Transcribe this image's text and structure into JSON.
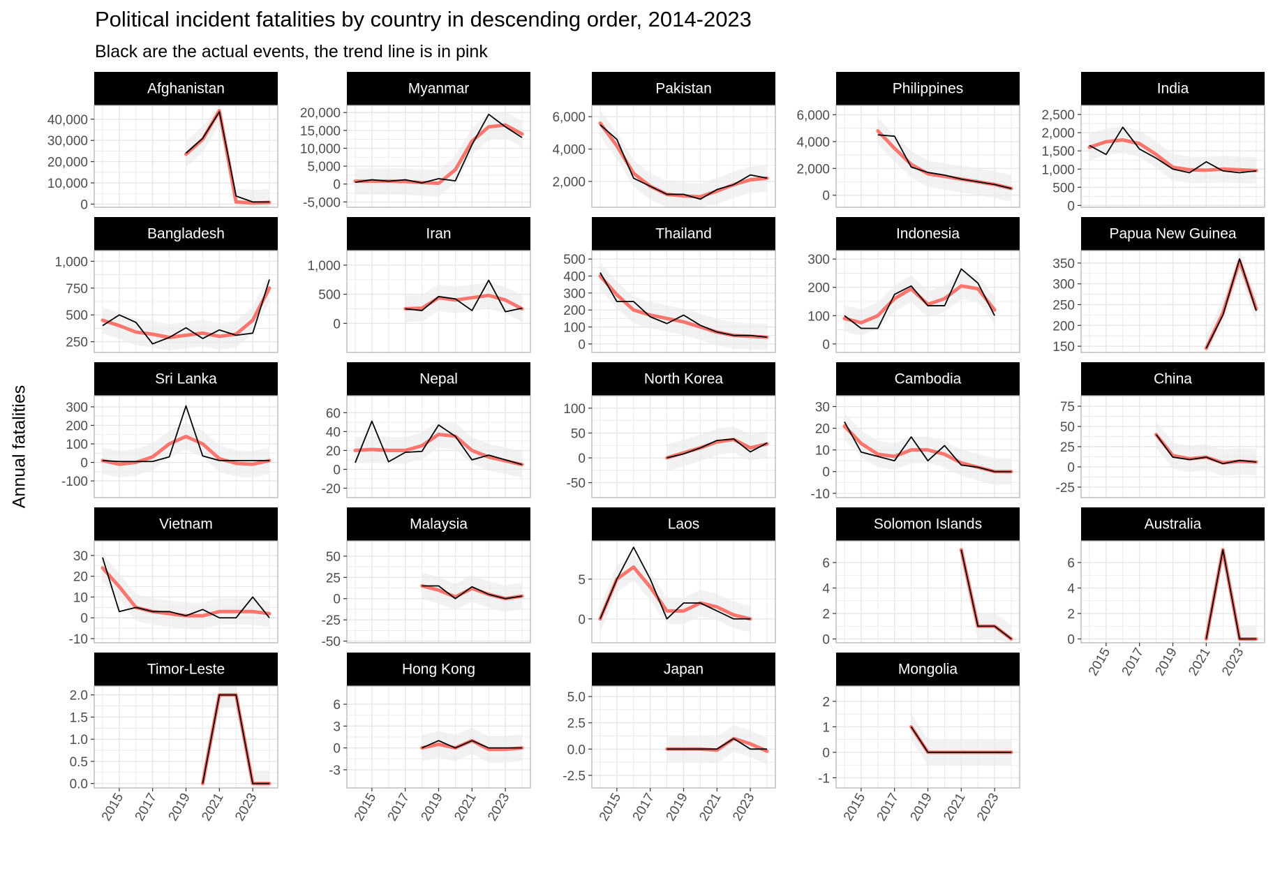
{
  "chart_data": {
    "type": "line",
    "title": "Political incident fatalities by country in descending order, 2014-2023",
    "subtitle": "Black are the actual events, the trend line is in pink",
    "ylabel": "Annual fatalities",
    "xlabel": "",
    "x_tick_labels": [
      "2015",
      "2017",
      "2019",
      "2021",
      "2023"
    ],
    "colors": {
      "actual": "#000000",
      "trend": "#f8766d",
      "band": "#ebebeb",
      "grid": "#e6e6e6",
      "strip": "#000000"
    },
    "panels": [
      {
        "name": "Afghanistan",
        "yticks": [
          "0",
          "10,000",
          "20,000",
          "30,000",
          "40,000"
        ],
        "ylim": [
          -1500,
          46500
        ],
        "x": [
          2019,
          2020,
          2021,
          2022,
          2023,
          2024
        ],
        "actual": [
          24000,
          31000,
          43500,
          3800,
          1000,
          1000
        ],
        "trend": [
          23500,
          30500,
          44000,
          1000,
          500,
          800
        ]
      },
      {
        "name": "Myanmar",
        "yticks": [
          "-5,000",
          "0",
          "5,000",
          "10,000",
          "15,000",
          "20,000"
        ],
        "ylim": [
          -6500,
          22000
        ],
        "x": [
          2014,
          2015,
          2016,
          2017,
          2018,
          2019,
          2020,
          2021,
          2022,
          2023,
          2024
        ],
        "actual": [
          500,
          1200,
          800,
          1200,
          300,
          1500,
          900,
          11000,
          19500,
          16000,
          13000
        ],
        "trend": [
          800,
          800,
          800,
          700,
          400,
          200,
          4000,
          12000,
          16000,
          16500,
          14000
        ]
      },
      {
        "name": "Pakistan",
        "yticks": [
          "2,000",
          "4,000",
          "6,000"
        ],
        "ylim": [
          400,
          6700
        ],
        "x": [
          2014,
          2015,
          2016,
          2017,
          2018,
          2019,
          2020,
          2021,
          2022,
          2023,
          2024
        ],
        "actual": [
          5500,
          4600,
          2200,
          1700,
          1200,
          1200,
          900,
          1500,
          1800,
          2400,
          2200
        ],
        "trend": [
          5600,
          4200,
          2500,
          1700,
          1200,
          1100,
          1050,
          1400,
          1800,
          2100,
          2200
        ]
      },
      {
        "name": "Philippines",
        "yticks": [
          "0",
          "2,000",
          "4,000",
          "6,000"
        ],
        "ylim": [
          -900,
          6700
        ],
        "x": [
          2016,
          2017,
          2018,
          2019,
          2020,
          2021,
          2022,
          2023,
          2024
        ],
        "actual": [
          4500,
          4400,
          2100,
          1700,
          1500,
          1200,
          1000,
          800,
          500
        ],
        "trend": [
          4800,
          3500,
          2300,
          1600,
          1400,
          1200,
          1000,
          800,
          500
        ]
      },
      {
        "name": "India",
        "yticks": [
          "0",
          "500",
          "1,000",
          "1,500",
          "2,000",
          "2,500"
        ],
        "ylim": [
          -50,
          2750
        ],
        "x": [
          2014,
          2015,
          2016,
          2017,
          2018,
          2019,
          2020,
          2021,
          2022,
          2023,
          2024
        ],
        "actual": [
          1650,
          1400,
          2150,
          1550,
          1300,
          1000,
          900,
          1200,
          950,
          900,
          950
        ],
        "trend": [
          1600,
          1750,
          1800,
          1700,
          1400,
          1050,
          980,
          970,
          1000,
          980,
          960
        ]
      },
      {
        "name": "Bangladesh",
        "yticks": [
          "250",
          "500",
          "750",
          "1,000"
        ],
        "ylim": [
          150,
          1100
        ],
        "x": [
          2014,
          2015,
          2016,
          2017,
          2018,
          2019,
          2020,
          2021,
          2022,
          2023,
          2024
        ],
        "actual": [
          400,
          500,
          430,
          230,
          290,
          380,
          280,
          360,
          310,
          330,
          830
        ],
        "trend": [
          450,
          400,
          340,
          320,
          290,
          310,
          330,
          300,
          320,
          450,
          750
        ]
      },
      {
        "name": "Iran",
        "yticks": [
          "0",
          "500",
          "1,000"
        ],
        "ylim": [
          -500,
          1250
        ],
        "x": [
          2017,
          2018,
          2019,
          2020,
          2021,
          2022,
          2023,
          2024
        ],
        "actual": [
          250,
          220,
          460,
          420,
          220,
          740,
          200,
          260
        ],
        "trend": [
          250,
          260,
          440,
          400,
          440,
          480,
          400,
          250
        ]
      },
      {
        "name": "Thailand",
        "yticks": [
          "0",
          "100",
          "200",
          "300",
          "400",
          "500"
        ],
        "ylim": [
          -50,
          550
        ],
        "x": [
          2014,
          2015,
          2016,
          2017,
          2018,
          2019,
          2020,
          2021,
          2022,
          2023,
          2024
        ],
        "actual": [
          420,
          250,
          250,
          160,
          120,
          170,
          110,
          70,
          50,
          50,
          40
        ],
        "trend": [
          400,
          290,
          200,
          170,
          150,
          130,
          100,
          70,
          50,
          45,
          40
        ]
      },
      {
        "name": "Indonesia",
        "yticks": [
          "0",
          "100",
          "200",
          "300"
        ],
        "ylim": [
          -30,
          330
        ],
        "x": [
          2014,
          2015,
          2016,
          2017,
          2018,
          2019,
          2020,
          2021,
          2022,
          2023,
          2024
        ],
        "actual": [
          100,
          55,
          55,
          175,
          205,
          135,
          135,
          265,
          215,
          100
        ],
        "x_override": [
          2014,
          2015,
          2016,
          2017,
          2018,
          2019,
          2020,
          2021,
          2022,
          2023
        ],
        "trend": [
          90,
          75,
          100,
          160,
          195,
          140,
          160,
          205,
          195,
          120
        ],
        "trend_x": [
          2014,
          2015,
          2016,
          2017,
          2018,
          2019,
          2020,
          2021,
          2022,
          2023
        ]
      },
      {
        "name": "Papua New Guinea",
        "yticks": [
          "150",
          "200",
          "250",
          "300",
          "350"
        ],
        "ylim": [
          135,
          380
        ],
        "x": [
          2021,
          2022,
          2023,
          2024
        ],
        "actual": [
          145,
          225,
          360,
          235
        ],
        "trend": [
          145,
          230,
          355,
          240
        ]
      },
      {
        "name": "Sri Lanka",
        "yticks": [
          "-100",
          "0",
          "100",
          "200",
          "300"
        ],
        "ylim": [
          -190,
          360
        ],
        "x": [
          2014,
          2015,
          2016,
          2017,
          2018,
          2019,
          2020,
          2021,
          2022,
          2023,
          2024
        ],
        "actual": [
          10,
          5,
          5,
          5,
          30,
          305,
          35,
          10,
          10,
          10,
          10
        ],
        "trend": [
          10,
          -10,
          0,
          30,
          100,
          140,
          100,
          20,
          -5,
          -10,
          10
        ]
      },
      {
        "name": "Nepal",
        "yticks": [
          "-20",
          "0",
          "20",
          "40",
          "60"
        ],
        "ylim": [
          -30,
          78
        ],
        "x": [
          2014,
          2015,
          2016,
          2017,
          2018,
          2019,
          2020,
          2021,
          2022,
          2023,
          2024
        ],
        "actual": [
          7,
          51,
          8,
          18,
          19,
          47,
          35,
          10,
          15,
          10,
          5
        ],
        "trend": [
          20,
          21,
          20,
          20,
          25,
          37,
          35,
          20,
          13,
          9,
          5
        ]
      },
      {
        "name": "North Korea",
        "yticks": [
          "-50",
          "0",
          "50",
          "100"
        ],
        "ylim": [
          -80,
          125
        ],
        "x": [
          2018,
          2019,
          2020,
          2021,
          2022,
          2023,
          2024
        ],
        "actual": [
          0,
          8,
          20,
          35,
          38,
          12,
          30
        ],
        "trend": [
          0,
          10,
          20,
          32,
          37,
          20,
          28
        ]
      },
      {
        "name": "Cambodia",
        "yticks": [
          "-10",
          "0",
          "10",
          "20",
          "30"
        ],
        "ylim": [
          -12,
          35
        ],
        "x": [
          2014,
          2015,
          2016,
          2017,
          2018,
          2019,
          2020,
          2021,
          2022,
          2023,
          2024
        ],
        "actual": [
          23,
          9,
          7,
          5,
          16,
          5,
          12,
          3,
          2,
          0,
          0
        ],
        "trend": [
          21,
          13,
          8,
          7,
          10,
          10,
          8,
          4,
          2,
          0,
          0
        ]
      },
      {
        "name": "China",
        "yticks": [
          "-25",
          "0",
          "25",
          "50",
          "75"
        ],
        "ylim": [
          -38,
          88
        ],
        "x": [
          2018,
          2019,
          2020,
          2021,
          2022,
          2023,
          2024
        ],
        "actual": [
          40,
          12,
          9,
          12,
          4,
          8,
          6
        ],
        "trend": [
          40,
          14,
          10,
          12,
          5,
          7,
          6
        ]
      },
      {
        "name": "Vietnam",
        "yticks": [
          "-10",
          "0",
          "10",
          "20",
          "30"
        ],
        "ylim": [
          -12,
          37
        ],
        "x": [
          2014,
          2015,
          2016,
          2017,
          2018,
          2019,
          2020,
          2021,
          2022,
          2023,
          2024
        ],
        "actual": [
          29,
          3,
          5,
          3,
          3,
          1,
          4,
          0,
          0,
          10,
          0
        ],
        "trend": [
          24,
          15,
          5,
          3,
          2,
          1,
          1,
          3,
          3,
          3,
          2
        ]
      },
      {
        "name": "Malaysia",
        "yticks": [
          "-50",
          "-25",
          "0",
          "25",
          "50"
        ],
        "ylim": [
          -52,
          68
        ],
        "x": [
          2018,
          2019,
          2020,
          2021,
          2022,
          2023,
          2024
        ],
        "actual": [
          15,
          15,
          0,
          14,
          5,
          0,
          3
        ],
        "trend": [
          15,
          10,
          2,
          12,
          5,
          0,
          3
        ]
      },
      {
        "name": "Laos",
        "yticks": [
          "0",
          "5"
        ],
        "ylim": [
          -3,
          9.8
        ],
        "x": [
          2014,
          2015,
          2016,
          2017,
          2018,
          2019,
          2020,
          2021,
          2022,
          2023
        ],
        "actual": [
          0,
          5,
          9,
          5,
          0,
          2,
          2,
          1,
          0,
          0
        ],
        "trend": [
          0,
          5,
          6.5,
          4,
          1,
          1,
          2,
          1.5,
          0.5,
          0
        ]
      },
      {
        "name": "Solomon Islands",
        "yticks": [
          "0",
          "2",
          "4",
          "6"
        ],
        "ylim": [
          -0.3,
          7.7
        ],
        "x": [
          2021,
          2022,
          2023,
          2024
        ],
        "actual": [
          7,
          1,
          1,
          0
        ],
        "trend": [
          7,
          1,
          1,
          0
        ]
      },
      {
        "name": "Australia",
        "yticks": [
          "0",
          "2",
          "4",
          "6"
        ],
        "ylim": [
          -0.3,
          7.7
        ],
        "x": [
          2021,
          2022,
          2023,
          2024
        ],
        "actual": [
          0,
          7,
          0,
          0
        ],
        "trend": [
          0,
          7,
          0,
          0
        ]
      },
      {
        "name": "Timor-Leste",
        "yticks": [
          "0.0",
          "0.5",
          "1.0",
          "1.5",
          "2.0"
        ],
        "ylim": [
          -0.1,
          2.2
        ],
        "x": [
          2020,
          2021,
          2022,
          2023,
          2024
        ],
        "actual": [
          0,
          2,
          2,
          0,
          0
        ],
        "trend": [
          0,
          2,
          2,
          0,
          0
        ]
      },
      {
        "name": "Hong Kong",
        "yticks": [
          "-3",
          "0",
          "3",
          "6"
        ],
        "ylim": [
          -5.5,
          8.5
        ],
        "x": [
          2018,
          2019,
          2020,
          2021,
          2022,
          2023,
          2024
        ],
        "actual": [
          0,
          1,
          0,
          1,
          0,
          0,
          0
        ],
        "trend": [
          0,
          0.5,
          0,
          1,
          -0.2,
          -0.2,
          0
        ]
      },
      {
        "name": "Japan",
        "yticks": [
          "-2.5",
          "0.0",
          "2.5",
          "5.0"
        ],
        "ylim": [
          -3.7,
          6
        ],
        "x": [
          2018,
          2019,
          2020,
          2021,
          2022,
          2023,
          2024
        ],
        "actual": [
          0,
          0,
          0,
          0,
          1,
          0,
          0
        ],
        "trend": [
          0,
          0,
          0,
          -0.1,
          1,
          0.5,
          -0.2
        ]
      },
      {
        "name": "Mongolia",
        "yticks": [
          "-1",
          "0",
          "1",
          "2"
        ],
        "ylim": [
          -1.4,
          2.6
        ],
        "x": [
          2018,
          2019,
          2020,
          2021,
          2022,
          2023,
          2024
        ],
        "actual": [
          1,
          0,
          0,
          0,
          0,
          0,
          0
        ],
        "trend": [
          1,
          0,
          0,
          0,
          0,
          0,
          0
        ]
      }
    ]
  }
}
